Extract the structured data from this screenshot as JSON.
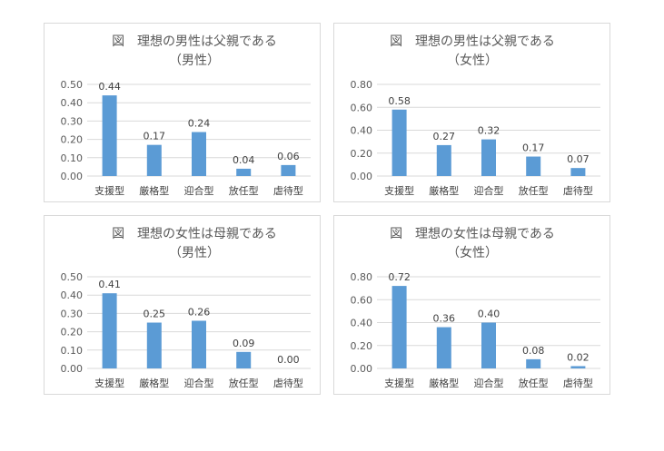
{
  "chart_data": [
    {
      "type": "bar",
      "title": "図　理想の男性は父親である",
      "subtitle": "（男性）",
      "categories": [
        "支援型",
        "厳格型",
        "迎合型",
        "放任型",
        "虐待型"
      ],
      "values": [
        0.44,
        0.17,
        0.24,
        0.04,
        0.06
      ],
      "value_labels": [
        "0.44",
        "0.17",
        "0.24",
        "0.04",
        "0.06"
      ],
      "yticks": [
        "0.00",
        "0.10",
        "0.20",
        "0.30",
        "0.40",
        "0.50"
      ],
      "ylim": [
        0,
        0.5
      ],
      "grid": true,
      "legend": "none",
      "color": "#5b9bd5"
    },
    {
      "type": "bar",
      "title": "図　理想の男性は父親である",
      "subtitle": "（女性）",
      "categories": [
        "支援型",
        "厳格型",
        "迎合型",
        "放任型",
        "虐待型"
      ],
      "values": [
        0.58,
        0.27,
        0.32,
        0.17,
        0.07
      ],
      "value_labels": [
        "0.58",
        "0.27",
        "0.32",
        "0.17",
        "0.07"
      ],
      "yticks": [
        "0.00",
        "0.20",
        "0.40",
        "0.60",
        "0.80"
      ],
      "ylim": [
        0,
        0.8
      ],
      "grid": true,
      "legend": "none",
      "color": "#5b9bd5"
    },
    {
      "type": "bar",
      "title": "図　理想の女性は母親である",
      "subtitle": "（男性）",
      "categories": [
        "支援型",
        "厳格型",
        "迎合型",
        "放任型",
        "虐待型"
      ],
      "values": [
        0.41,
        0.25,
        0.26,
        0.09,
        0.0
      ],
      "value_labels": [
        "0.41",
        "0.25",
        "0.26",
        "0.09",
        "0.00"
      ],
      "yticks": [
        "0.00",
        "0.10",
        "0.20",
        "0.30",
        "0.40",
        "0.50"
      ],
      "ylim": [
        0,
        0.5
      ],
      "grid": true,
      "legend": "none",
      "color": "#5b9bd5"
    },
    {
      "type": "bar",
      "title": "図　理想の女性は母親である",
      "subtitle": "（女性）",
      "categories": [
        "支援型",
        "厳格型",
        "迎合型",
        "放任型",
        "虐待型"
      ],
      "values": [
        0.72,
        0.36,
        0.4,
        0.08,
        0.02
      ],
      "value_labels": [
        "0.72",
        "0.36",
        "0.40",
        "0.08",
        "0.02"
      ],
      "yticks": [
        "0.00",
        "0.20",
        "0.40",
        "0.60",
        "0.80"
      ],
      "ylim": [
        0,
        0.8
      ],
      "grid": true,
      "legend": "none",
      "color": "#5b9bd5"
    }
  ]
}
